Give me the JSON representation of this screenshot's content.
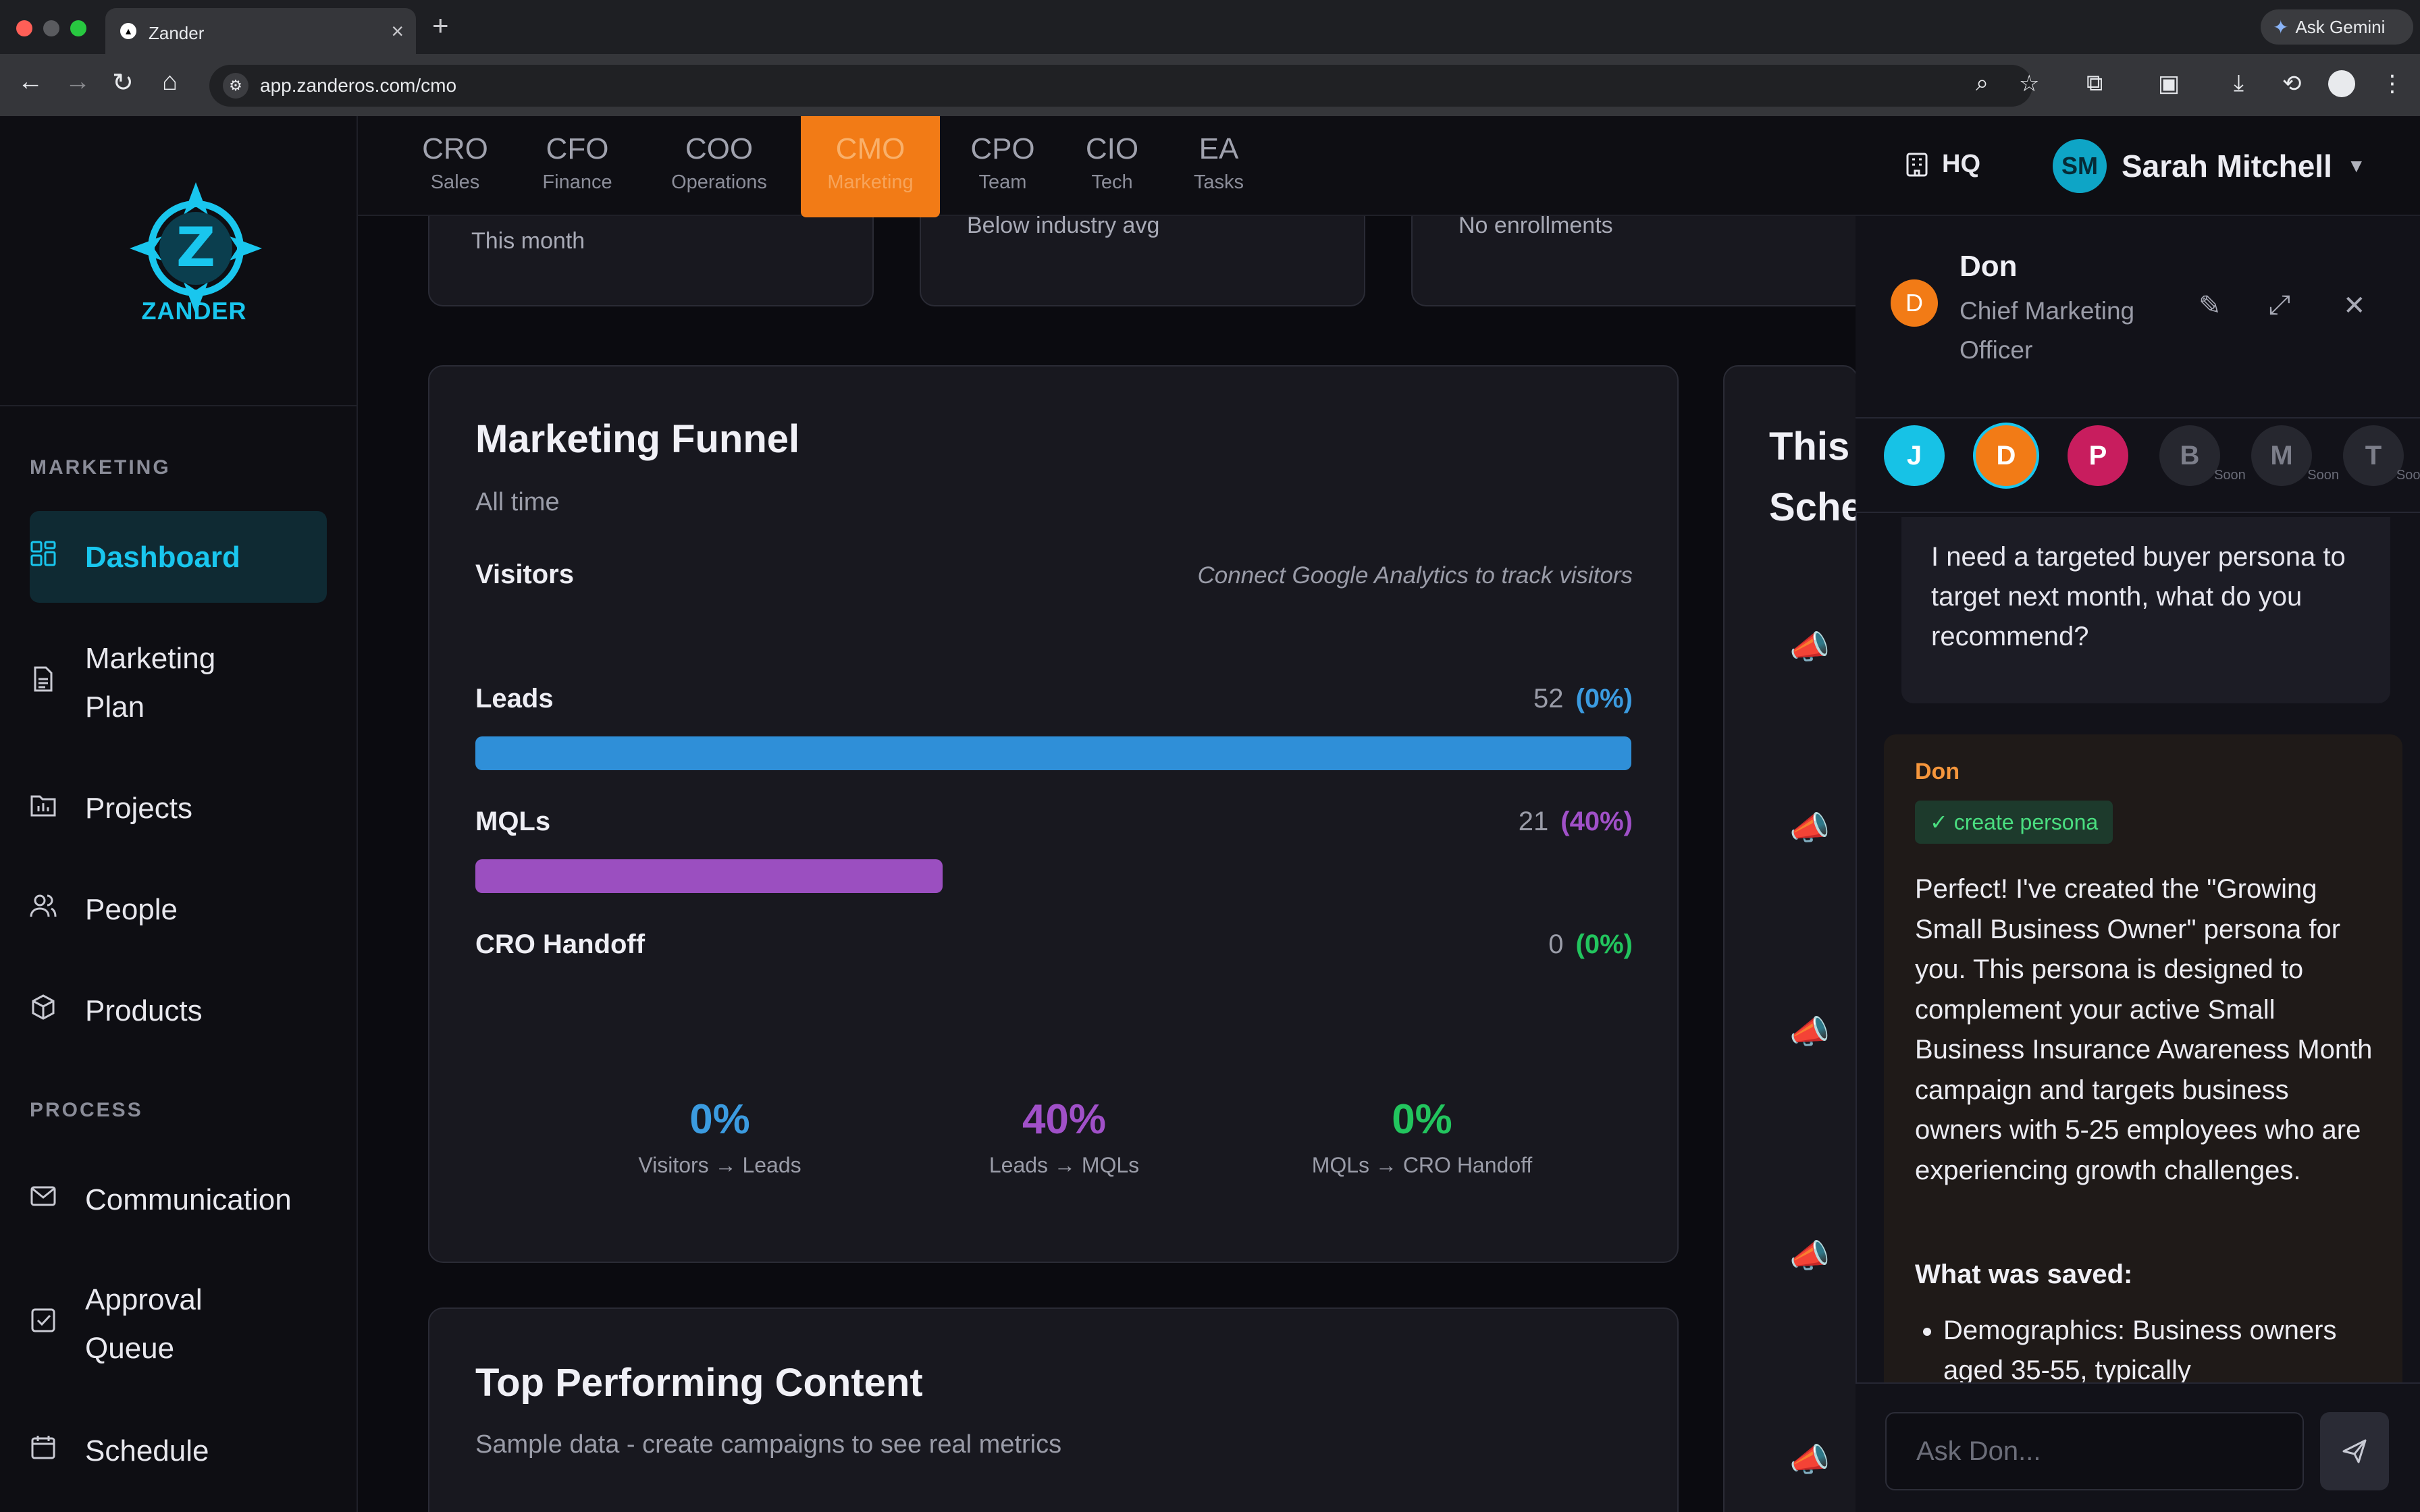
{
  "browser": {
    "tab_title": "Zander",
    "url": "app.zanderos.com/cmo",
    "gemini_label": "Ask Gemini"
  },
  "brand": {
    "logo_text": "ZANDER",
    "accent": "#19c6ee"
  },
  "sidebar": {
    "section_marketing": "MARKETING",
    "section_process": "PROCESS",
    "items": [
      {
        "label": "Dashboard",
        "icon": "dashboard-icon",
        "active": true
      },
      {
        "label": "Marketing Plan",
        "icon": "document-icon"
      },
      {
        "label": "Projects",
        "icon": "chart-folder-icon"
      },
      {
        "label": "People",
        "icon": "people-icon"
      },
      {
        "label": "Products",
        "icon": "box-icon"
      },
      {
        "label": "Communication",
        "icon": "mail-icon"
      },
      {
        "label": "Approval Queue",
        "icon": "checkbox-icon"
      },
      {
        "label": "Schedule",
        "icon": "calendar-icon"
      }
    ]
  },
  "topnav": {
    "roles": [
      {
        "code": "CRO",
        "name": "Sales"
      },
      {
        "code": "CFO",
        "name": "Finance"
      },
      {
        "code": "COO",
        "name": "Operations"
      },
      {
        "code": "CMO",
        "name": "Marketing",
        "active": true,
        "color": "#f27b16"
      },
      {
        "code": "CPO",
        "name": "Team"
      },
      {
        "code": "CIO",
        "name": "Tech"
      },
      {
        "code": "EA",
        "name": "Tasks"
      }
    ],
    "hq_label": "HQ",
    "user_initials": "SM",
    "user_name": "Sarah Mitchell"
  },
  "stat_cards": [
    {
      "subtitle": "This month"
    },
    {
      "subtitle": "Below industry avg"
    },
    {
      "subtitle": "No enrollments"
    }
  ],
  "funnel": {
    "title": "Marketing Funnel",
    "period": "All time",
    "visitors_label": "Visitors",
    "visitors_note": "Connect Google Analytics to track visitors",
    "stages": [
      {
        "label": "Leads",
        "count": "52",
        "pct": "(0%)",
        "color": "#2f8fd8",
        "fill": 1.0
      },
      {
        "label": "MQLs",
        "count": "21",
        "pct": "(40%)",
        "color": "#9b4fc0",
        "fill": 0.404
      },
      {
        "label": "CRO Handoff",
        "count": "0",
        "pct": "(0%)",
        "color": "#22c55e",
        "fill": 0
      }
    ],
    "rates": [
      {
        "value": "0%",
        "caption": "Visitors → Leads",
        "color": "#3b9be0"
      },
      {
        "value": "40%",
        "caption": "Leads → MQLs",
        "color": "#a050c8"
      },
      {
        "value": "0%",
        "caption": "MQLs → CRO Handoff",
        "color": "#22c55e"
      }
    ]
  },
  "top_content": {
    "title": "Top Performing Content",
    "subtitle": "Sample data - create campaigns to see real metrics"
  },
  "schedule_card": {
    "title_line1": "This",
    "title_line2": "Sche"
  },
  "chat": {
    "agent_initial": "D",
    "agent_name": "Don",
    "agent_role": "Chief Marketing Officer",
    "agents": [
      {
        "initial": "J",
        "color": "#17c2e6"
      },
      {
        "initial": "D",
        "color": "#f27b16",
        "selected": true
      },
      {
        "initial": "P",
        "color": "#c81d5e"
      },
      {
        "initial": "B",
        "soon": "Soon"
      },
      {
        "initial": "M",
        "soon": "Soon"
      },
      {
        "initial": "T",
        "soon": "Soon"
      }
    ],
    "user_message": "I need a targeted buyer persona to target next month, what do you recommend?",
    "reply_author": "Don",
    "tool_badge": "✓ create persona",
    "reply_text": "Perfect! I've created the \"Growing Small Business Owner\" persona for you. This persona is designed to complement your active Small Business Insurance Awareness Month campaign and targets business owners with 5-25 employees who are experiencing growth challenges.",
    "saved_heading": "What was saved:",
    "saved_items": [
      "Demographics: Business owners aged 35-55, typically"
    ],
    "input_placeholder": "Ask Don..."
  }
}
